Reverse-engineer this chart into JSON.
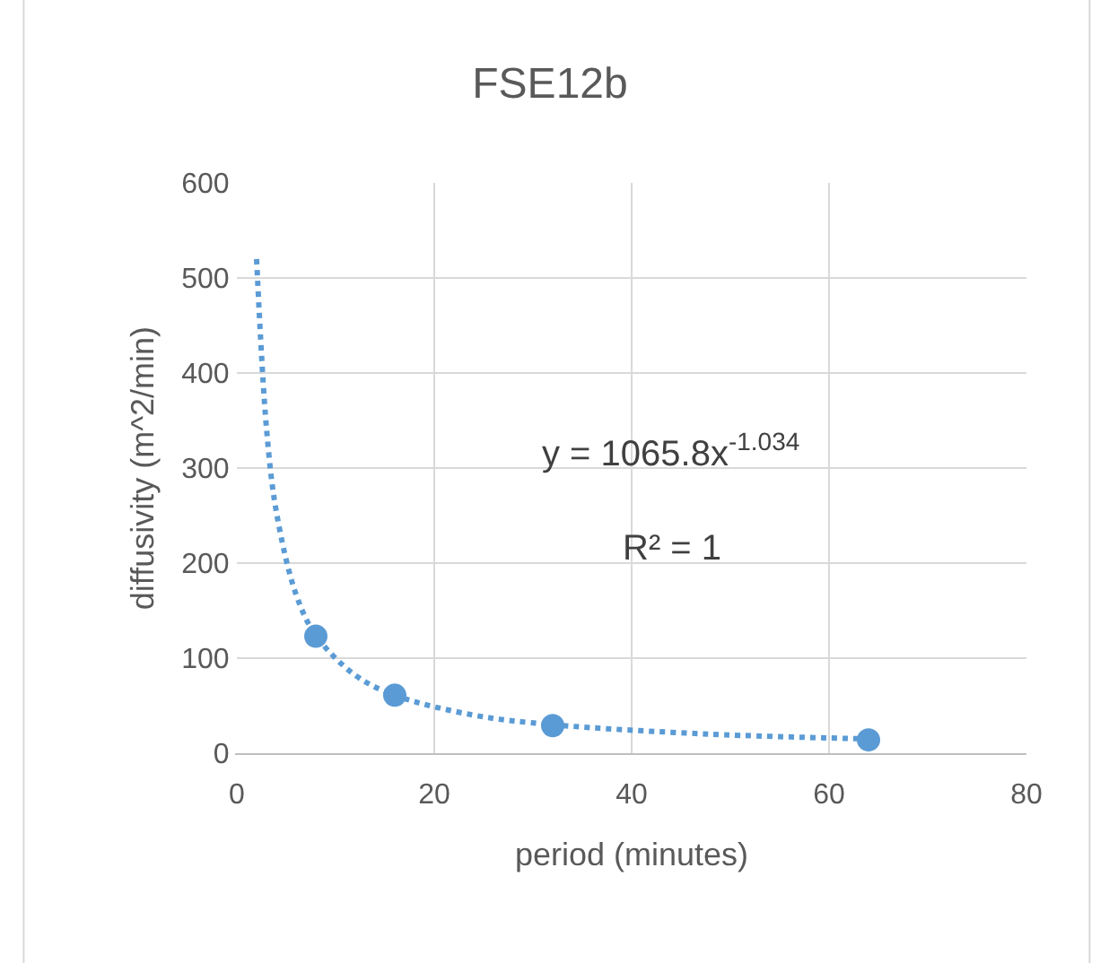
{
  "chart_data": {
    "type": "scatter",
    "title": "FSE12b",
    "xlabel": "period (minutes)",
    "ylabel": "diffusivity (m^2/min)",
    "xlim": [
      0,
      80
    ],
    "xticks": [
      0,
      20,
      40,
      60,
      80
    ],
    "ylim": [
      0,
      600
    ],
    "yticks": [
      0,
      100,
      200,
      300,
      400,
      500,
      600
    ],
    "grid": true,
    "marker": "circle",
    "series": [
      {
        "color": "#5b9bd5",
        "x": [
          8,
          16,
          32,
          64
        ],
        "values": [
          123,
          61,
          29,
          14
        ]
      },
      {
        "type": "line",
        "color": "#5b9bd5",
        "line_style": "dotted",
        "marker": "none",
        "x": [
          2,
          3,
          4,
          6,
          8,
          12,
          16,
          24,
          32,
          48,
          64
        ],
        "values": [
          520,
          342,
          254,
          167,
          124,
          82,
          61,
          40,
          30,
          20,
          15
        ]
      }
    ],
    "annotations": [
      "y = 1065.8x$^{-1.034}$",
      "R² = 1"
    ]
  }
}
